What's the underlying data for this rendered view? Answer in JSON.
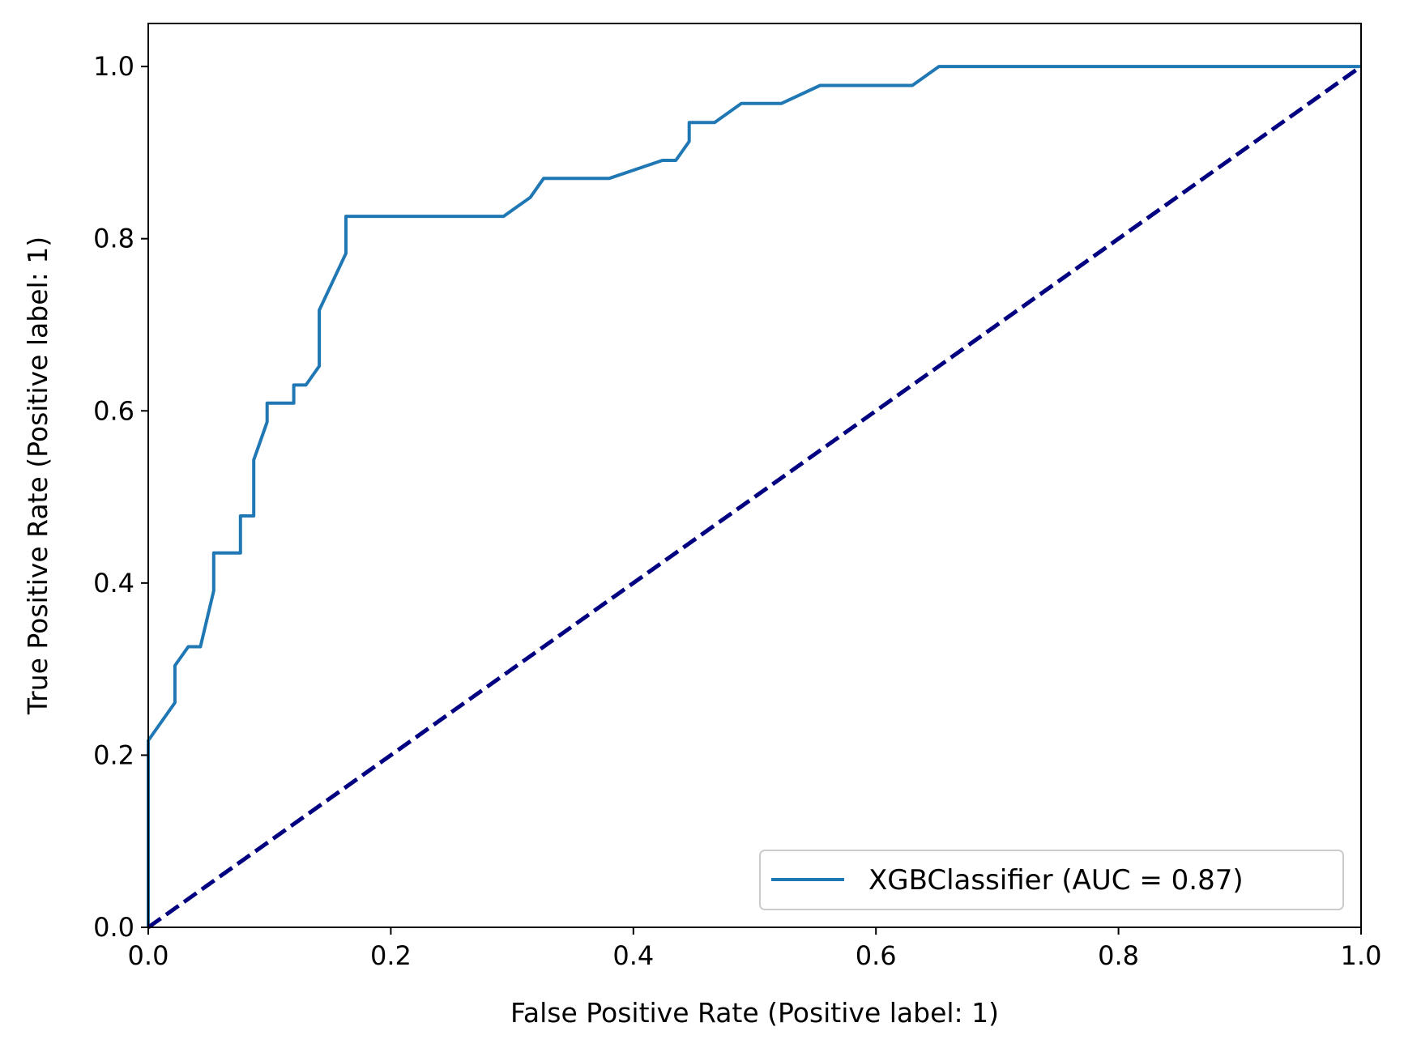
{
  "chart_data": {
    "type": "line",
    "title": "",
    "xlabel": "False Positive Rate (Positive label: 1)",
    "ylabel": "True Positive Rate (Positive label: 1)",
    "xlim": [
      0.0,
      1.0
    ],
    "ylim": [
      0.0,
      1.05
    ],
    "xticks": [
      "0.0",
      "0.2",
      "0.4",
      "0.6",
      "0.8",
      "1.0"
    ],
    "yticks": [
      "0.0",
      "0.2",
      "0.4",
      "0.6",
      "0.8",
      "1.0"
    ],
    "grid": false,
    "legend_position": "lower-right",
    "series": [
      {
        "name": "XGBClassifier (AUC = 0.87)",
        "color": "#1f77b4",
        "style": "solid",
        "x": [
          0.0,
          0.0,
          0.022,
          0.022,
          0.033,
          0.043,
          0.054,
          0.054,
          0.076,
          0.076,
          0.087,
          0.087,
          0.098,
          0.098,
          0.12,
          0.12,
          0.13,
          0.141,
          0.141,
          0.163,
          0.163,
          0.293,
          0.315,
          0.326,
          0.38,
          0.424,
          0.435,
          0.446,
          0.446,
          0.467,
          0.489,
          0.522,
          0.554,
          0.63,
          0.652,
          1.0
        ],
        "y": [
          0.0,
          0.217,
          0.261,
          0.304,
          0.326,
          0.326,
          0.391,
          0.435,
          0.435,
          0.478,
          0.478,
          0.543,
          0.587,
          0.609,
          0.609,
          0.63,
          0.63,
          0.652,
          0.717,
          0.783,
          0.826,
          0.826,
          0.848,
          0.87,
          0.87,
          0.891,
          0.891,
          0.913,
          0.935,
          0.935,
          0.957,
          0.957,
          0.978,
          0.978,
          1.0,
          1.0
        ]
      },
      {
        "name": "",
        "color": "#000080",
        "style": "dashed",
        "x": [
          0.0,
          1.0
        ],
        "y": [
          0.0,
          1.0
        ]
      }
    ]
  }
}
